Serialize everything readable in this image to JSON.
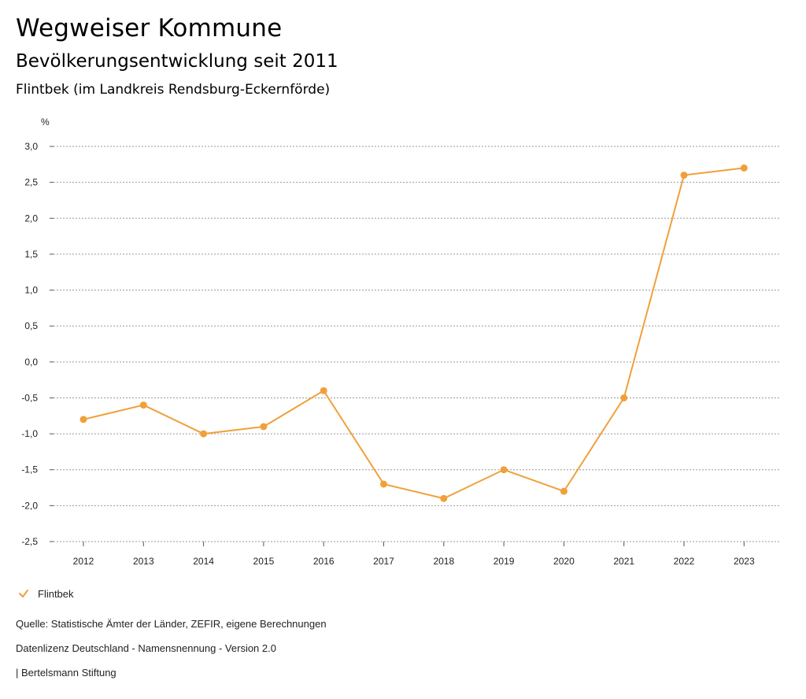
{
  "header": {
    "title": "Wegweiser Kommune",
    "subtitle": "Bevölkerungsentwicklung seit 2011",
    "place": "Flintbek (im Landkreis Rendsburg-Eckernförde)"
  },
  "legend": {
    "label": "Flintbek",
    "icon": "checkmark-icon"
  },
  "footer": {
    "source": "Quelle: Statistische Ämter der Länder, ZEFIR, eigene Berechnungen",
    "license": "Datenlizenz Deutschland - Namensnennung - Version 2.0",
    "publisher": "| Bertelsmann Stiftung"
  },
  "colors": {
    "series": "#F0A03A",
    "grid": "#9a9a9a",
    "axis": "#555555"
  },
  "chart_data": {
    "type": "line",
    "title": "Bevölkerungsentwicklung seit 2011",
    "xlabel": "",
    "ylabel": "%",
    "categories": [
      "2012",
      "2013",
      "2014",
      "2015",
      "2016",
      "2017",
      "2018",
      "2019",
      "2020",
      "2021",
      "2022",
      "2023"
    ],
    "series": [
      {
        "name": "Flintbek",
        "values": [
          -0.8,
          -0.6,
          -1.0,
          -0.9,
          -0.4,
          -1.7,
          -1.9,
          -1.5,
          -1.8,
          -0.5,
          2.6,
          2.7
        ]
      }
    ],
    "yticks": [
      3.0,
      2.5,
      2.0,
      1.5,
      1.0,
      0.5,
      0.0,
      -0.5,
      -1.0,
      -1.5,
      -2.0,
      -2.5
    ],
    "ytick_labels": [
      "3,0",
      "2,5",
      "2,0",
      "1,5",
      "1,0",
      "0,5",
      "0,0",
      "-0,5",
      "-1,0",
      "-1,5",
      "-2,0",
      "-2,5"
    ],
    "ylim": [
      -2.5,
      3.0
    ],
    "grid": true,
    "legend_position": "bottom-left"
  }
}
